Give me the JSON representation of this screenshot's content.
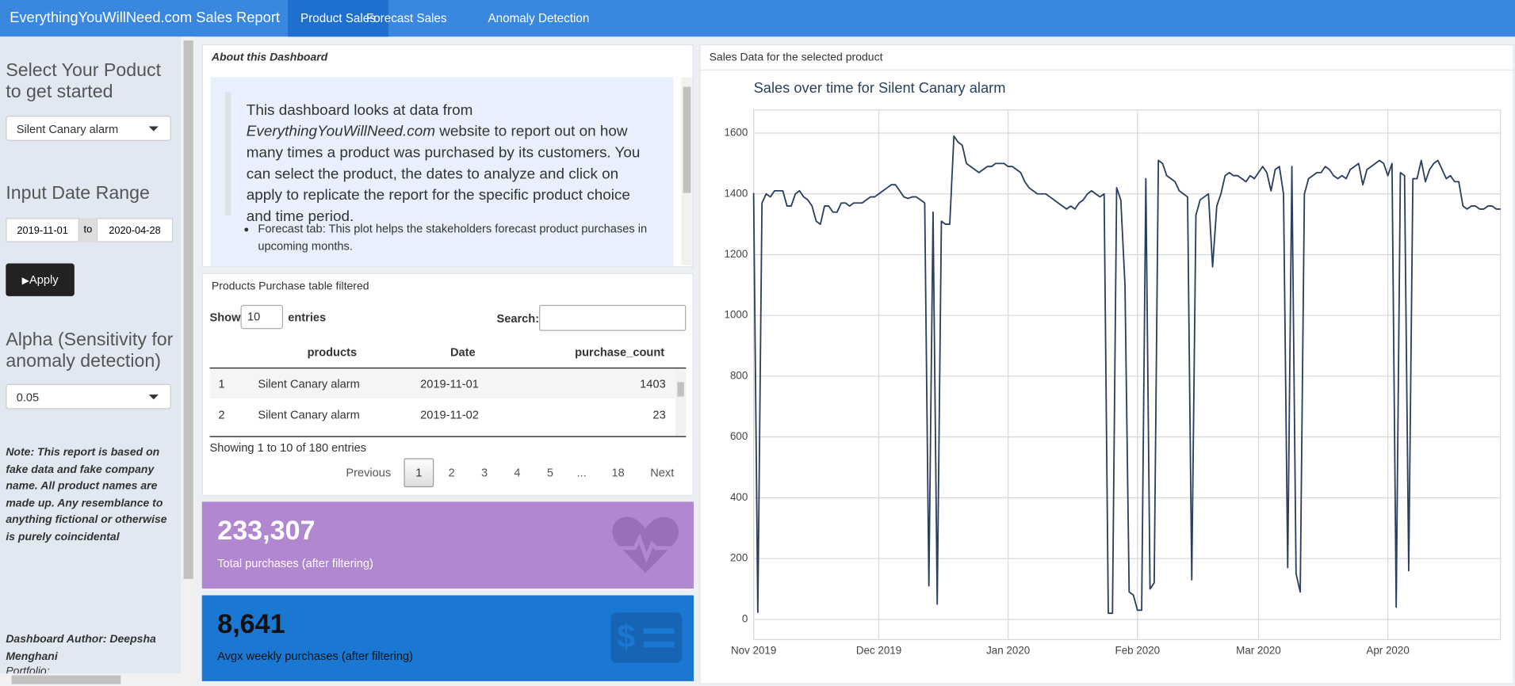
{
  "navbar": {
    "brand": "EverythingYouWillNeed.com Sales Report",
    "tabs": [
      "Product Sales",
      "Forecast Sales",
      "Anomaly Detection"
    ]
  },
  "sidebar": {
    "product_label": "Select Your Poduct to get started",
    "product": "Silent Canary alarm",
    "date_label": "Input Date Range",
    "date_start": "2019-11-01",
    "date_sep": "to",
    "date_end": "2020-04-28",
    "apply": "Apply",
    "alpha_label": "Alpha (Sensitivity for anomaly detection)",
    "alpha": "0.05",
    "note": "Note: This report is based on fake data and fake company name. All product names are made up. Any resemblance to anything fictional or otherwise is purely coincidental",
    "author": "Dashboard Author: Deepsha Menghani",
    "portfolio": "Portfolio:"
  },
  "about": {
    "title": "About this Dashboard",
    "intro_start": "This dashboard looks at data from ",
    "intro_site": "EverythingYouWillNeed.com",
    "intro_end": " website to report out on how many times a product was purchased by its customers. You can select the product, the dates to analyze and click on apply to replicate the report for the specific product choice and time period.",
    "bullets": [
      "Forecast tab: This plot helps the stakeholders forecast product purchases in upcoming months."
    ]
  },
  "table": {
    "title": "Products Purchase table filtered",
    "show": "Show",
    "length": "10",
    "entries": "entries",
    "search": "Search:",
    "columns": [
      "products",
      "Date",
      "purchase_count"
    ],
    "rows": [
      [
        "1",
        "Silent Canary alarm",
        "2019-11-01",
        "1403"
      ],
      [
        "2",
        "Silent Canary alarm",
        "2019-11-02",
        "23"
      ]
    ],
    "info": "Showing 1 to 10 of 180 entries",
    "pages": [
      "Previous",
      "1",
      "2",
      "3",
      "4",
      "5",
      "...",
      "18",
      "Next"
    ]
  },
  "value_boxes": [
    {
      "value": "233,307",
      "label": "Total purchases (after filtering)"
    },
    {
      "value": "8,641",
      "label": "Avgx weekly purchases (after filtering)"
    }
  ],
  "chart_panel": {
    "title": "Sales Data for the selected product"
  },
  "chart_data": {
    "type": "line",
    "title": "Sales over time for Silent Canary alarm",
    "color": "#2a3f5f",
    "grid": true,
    "xlim": [
      "2019-11-01",
      "2020-04-28"
    ],
    "xticks": [
      {
        "value": "2019-11-01",
        "label": "Nov 2019"
      },
      {
        "value": "2019-12-01",
        "label": "Dec 2019"
      },
      {
        "value": "2020-01-01",
        "label": "Jan 2020"
      },
      {
        "value": "2020-02-01",
        "label": "Feb 2020"
      },
      {
        "value": "2020-03-01",
        "label": "Mar 2020"
      },
      {
        "value": "2020-04-01",
        "label": "Apr 2020"
      }
    ],
    "ylim": [
      -67,
      1676
    ],
    "yticks": [
      0,
      200,
      400,
      600,
      800,
      1000,
      1200,
      1400,
      1600
    ],
    "values": [
      1403,
      23,
      1370,
      1400,
      1390,
      1410,
      1410,
      1410,
      1360,
      1360,
      1400,
      1410,
      1390,
      1380,
      1360,
      1310,
      1300,
      1360,
      1360,
      1340,
      1340,
      1370,
      1370,
      1360,
      1370,
      1370,
      1370,
      1380,
      1390,
      1390,
      1400,
      1410,
      1420,
      1430,
      1430,
      1410,
      1390,
      1385,
      1390,
      1390,
      1380,
      1370,
      110,
      1340,
      50,
      1310,
      1300,
      1300,
      1590,
      1570,
      1560,
      1500,
      1490,
      1480,
      1470,
      1480,
      1490,
      1490,
      1500,
      1500,
      1500,
      1490,
      1490,
      1480,
      1470,
      1440,
      1420,
      1410,
      1400,
      1400,
      1400,
      1390,
      1380,
      1370,
      1360,
      1350,
      1360,
      1350,
      1370,
      1380,
      1400,
      1410,
      1400,
      1390,
      1400,
      20,
      20,
      1420,
      1380,
      1100,
      90,
      80,
      30,
      30,
      1450,
      100,
      120,
      1510,
      1500,
      1460,
      1450,
      1440,
      1410,
      1400,
      1390,
      130,
      1330,
      1380,
      1390,
      1400,
      1160,
      1360,
      1400,
      1460,
      1470,
      1460,
      1460,
      1450,
      1440,
      1460,
      1450,
      1470,
      1490,
      1470,
      1410,
      1480,
      1490,
      1400,
      170,
      1490,
      150,
      90,
      1400,
      1450,
      1460,
      1470,
      1470,
      1490,
      1480,
      1460,
      1450,
      1460,
      1450,
      1480,
      1490,
      1500,
      1430,
      1480,
      1490,
      1500,
      1510,
      1500,
      1460,
      1500,
      40,
      1470,
      1460,
      160,
      1450,
      1450,
      1510,
      1440,
      1480,
      1500,
      1510,
      1480,
      1450,
      1460,
      1440,
      1440,
      1360,
      1350,
      1360,
      1360,
      1350,
      1350,
      1360,
      1360,
      1350,
      1350
    ]
  }
}
